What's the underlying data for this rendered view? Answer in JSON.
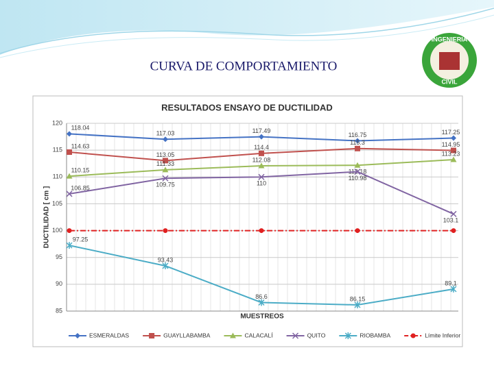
{
  "slide_title": "CURVA DE COMPORTAMIENTO",
  "logo": {
    "top": "INGENIERIA",
    "bottom": "CIVIL"
  },
  "chart_data": {
    "type": "line",
    "title": "RESULTADOS ENSAYO DE DUCTILIDAD",
    "x_label": "MUESTREOS",
    "y_label": "DUCTILIDAD [ cm ]",
    "categories": [
      null,
      null,
      null,
      null,
      null
    ],
    "ylim": [
      85,
      120
    ],
    "yticks": [
      85,
      90,
      95,
      100,
      105,
      110,
      115,
      120
    ],
    "grid": true,
    "legend": "bottom",
    "series": [
      {
        "name": "ESMERALDAS",
        "color": "#4472c4",
        "marker": "diamond",
        "values": [
          118.04,
          117.03,
          117.49,
          116.75,
          117.25
        ]
      },
      {
        "name": "GUAYLLABAMBA",
        "color": "#c0504d",
        "marker": "square",
        "values": [
          114.63,
          113.05,
          114.4,
          115.3,
          114.95
        ]
      },
      {
        "name": "CALACALÍ",
        "color": "#9bbb59",
        "marker": "triangle",
        "values": [
          110.15,
          111.33,
          112.08,
          112.18,
          113.23
        ]
      },
      {
        "name": "QUITO",
        "color": "#8064a2",
        "marker": "x",
        "values": [
          106.85,
          109.75,
          110,
          110.98,
          103.1
        ]
      },
      {
        "name": "RIOBAMBA",
        "color": "#4bacc6",
        "marker": "star",
        "values": [
          97.25,
          93.43,
          86.6,
          86.15,
          89.1
        ]
      },
      {
        "name": "Límite Inferior",
        "color": "#e02020",
        "marker": "circle",
        "dash": true,
        "show_labels": false,
        "values": [
          100,
          100,
          100,
          100,
          100
        ]
      }
    ]
  }
}
